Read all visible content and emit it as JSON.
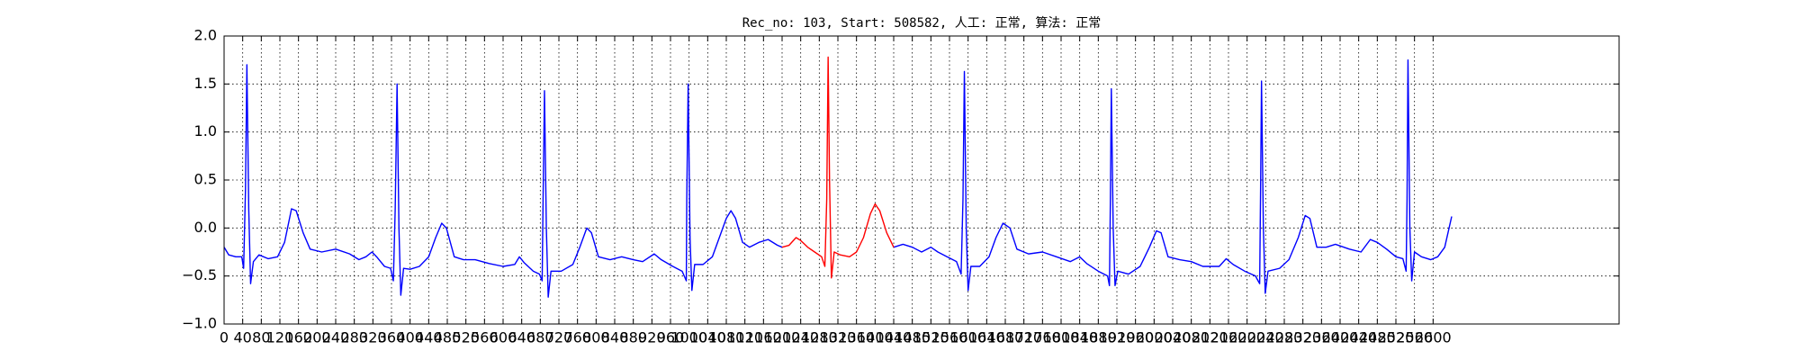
{
  "chart_data": {
    "type": "line",
    "title": "Rec_no: 103, Start: 508582, 人工: 正常, 算法: 正常",
    "xlim": [
      0,
      3000
    ],
    "ylim": [
      -1,
      2
    ],
    "xticks": [
      0,
      40,
      80,
      120,
      160,
      200,
      240,
      280,
      320,
      360,
      400,
      440,
      480,
      520,
      560,
      600,
      640,
      680,
      720,
      760,
      800,
      840,
      880,
      920,
      960,
      1000,
      1040,
      1080,
      1120,
      1160,
      1200,
      1240,
      1280,
      1320,
      1360,
      1400,
      1440,
      1480,
      1520,
      1560,
      1600,
      1640,
      1680,
      1720,
      1760,
      1800,
      1840,
      1880,
      1920,
      1960,
      2000,
      2040,
      2080,
      2120,
      2160,
      2200,
      2240,
      2280,
      2320,
      2360,
      2400,
      2440,
      2480,
      2520,
      2560,
      2600
    ],
    "yticks": [
      {
        "value": -1,
        "label": "−1.0"
      },
      {
        "value": -0.5,
        "label": "−0.5"
      },
      {
        "value": 0,
        "label": "0.0"
      },
      {
        "value": 0.5,
        "label": "0.5"
      },
      {
        "value": 1,
        "label": "1.0"
      },
      {
        "value": 1.5,
        "label": "1.5"
      },
      {
        "value": 2,
        "label": "2.0"
      }
    ],
    "grid": true,
    "series": [
      {
        "color": "#0000ff",
        "x": [
          0,
          10,
          25,
          38,
          42,
          46,
          49,
          53,
          57,
          63,
          75,
          95,
          115,
          130,
          145,
          155,
          170,
          185,
          210,
          240,
          270,
          290,
          305,
          318,
          328,
          345,
          358,
          364,
          368,
          372,
          376,
          380,
          386,
          400,
          420,
          440,
          455,
          468,
          478,
          495,
          515,
          540,
          570,
          600,
          625,
          635,
          645,
          665,
          678,
          684,
          686,
          689,
          693,
          697,
          703,
          725,
          750,
          765,
          780,
          790,
          805,
          830,
          855,
          880,
          900,
          925,
          940,
          965,
          985,
          994,
          995,
          998,
          1002,
          1006,
          1012,
          1030,
          1050,
          1065,
          1080,
          1090,
          1100,
          1115,
          1130,
          1150,
          1170,
          1190,
          1200,
          1320,
          1440,
          1460,
          1480,
          1500,
          1520,
          1535,
          1555,
          1575,
          1585,
          1589,
          1592,
          1596,
          1600,
          1606,
          1625,
          1645,
          1660,
          1675,
          1690,
          1705,
          1730,
          1760,
          1790,
          1820,
          1840,
          1855,
          1880,
          1900,
          1904,
          1906,
          1908,
          1912,
          1916,
          1922,
          1945,
          1970,
          1990,
          2005,
          2015,
          2030,
          2055,
          2080,
          2105,
          2140,
          2155,
          2170,
          2195,
          2218,
          2227,
          2229,
          2231,
          2235,
          2239,
          2245,
          2270,
          2290,
          2310,
          2325,
          2335,
          2350,
          2370,
          2390,
          2420,
          2445,
          2465,
          2480,
          2500,
          2520,
          2535,
          2542,
          2544,
          2546,
          2550,
          2554,
          2560,
          2575,
          2595,
          2610,
          2625,
          2640
        ],
        "values": [
          -0.2,
          -0.28,
          -0.3,
          -0.3,
          -0.42,
          0.4,
          1.7,
          0.2,
          -0.58,
          -0.35,
          -0.28,
          -0.32,
          -0.3,
          -0.15,
          0.2,
          0.18,
          -0.05,
          -0.22,
          -0.25,
          -0.22,
          -0.27,
          -0.33,
          -0.3,
          -0.25,
          -0.3,
          -0.4,
          -0.42,
          -0.55,
          0.2,
          1.5,
          0,
          -0.7,
          -0.42,
          -0.43,
          -0.4,
          -0.3,
          -0.1,
          0.05,
          0,
          -0.3,
          -0.33,
          -0.33,
          -0.37,
          -0.4,
          -0.38,
          -0.3,
          -0.36,
          -0.45,
          -0.48,
          -0.55,
          0.3,
          1.43,
          0,
          -0.72,
          -0.45,
          -0.45,
          -0.38,
          -0.2,
          0,
          -0.05,
          -0.3,
          -0.33,
          -0.3,
          -0.33,
          -0.35,
          -0.27,
          -0.33,
          -0.4,
          -0.45,
          -0.55,
          0.3,
          1.5,
          -0.1,
          -0.65,
          -0.38,
          -0.38,
          -0.3,
          -0.1,
          0.1,
          0.18,
          0.1,
          -0.15,
          -0.2,
          -0.15,
          -0.12,
          -0.18,
          -0.2,
          null,
          -0.2,
          -0.17,
          -0.2,
          -0.25,
          -0.2,
          -0.25,
          -0.3,
          -0.35,
          -0.48,
          0.3,
          1.63,
          0,
          -0.65,
          -0.4,
          -0.4,
          -0.3,
          -0.1,
          0.05,
          0,
          -0.22,
          -0.27,
          -0.25,
          -0.3,
          -0.35,
          -0.3,
          -0.37,
          -0.45,
          -0.5,
          -0.6,
          0.3,
          1.45,
          0,
          -0.6,
          -0.45,
          -0.48,
          -0.4,
          -0.2,
          -0.03,
          -0.05,
          -0.3,
          -0.33,
          -0.35,
          -0.4,
          -0.4,
          -0.32,
          -0.38,
          -0.45,
          -0.5,
          -0.58,
          0.4,
          1.53,
          0,
          -0.68,
          -0.45,
          -0.42,
          -0.33,
          -0.1,
          0.13,
          0.1,
          -0.2,
          -0.2,
          -0.17,
          -0.22,
          -0.25,
          -0.12,
          -0.15,
          -0.22,
          -0.3,
          -0.32,
          -0.45,
          0.3,
          1.75,
          0,
          -0.55,
          -0.25,
          -0.3,
          -0.33,
          -0.3,
          -0.2,
          0.12
        ]
      },
      {
        "color": "#ff0000",
        "x": [
          1200,
          1215,
          1230,
          1240,
          1255,
          1270,
          1285,
          1292,
          1296,
          1299,
          1302,
          1306,
          1312,
          1325,
          1345,
          1360,
          1375,
          1390,
          1400,
          1410,
          1425,
          1440
        ],
        "values": [
          -0.2,
          -0.18,
          -0.1,
          -0.13,
          -0.2,
          -0.25,
          -0.3,
          -0.4,
          0.3,
          1.78,
          0.5,
          -0.52,
          -0.25,
          -0.28,
          -0.3,
          -0.25,
          -0.1,
          0.15,
          0.25,
          0.18,
          -0.05,
          -0.2
        ]
      }
    ]
  }
}
